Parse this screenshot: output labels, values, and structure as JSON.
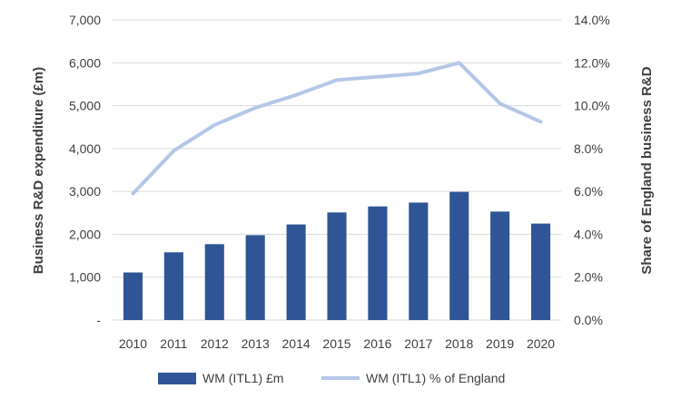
{
  "chart_data": {
    "type": "bar+line",
    "title": "",
    "categories": [
      "2010",
      "2011",
      "2012",
      "2013",
      "2014",
      "2015",
      "2016",
      "2017",
      "2018",
      "2019",
      "2020"
    ],
    "series": [
      {
        "name": "WM (ITL1) £m",
        "type": "bar",
        "axis": "left",
        "color": "#2f5597",
        "values": [
          1110,
          1580,
          1770,
          1980,
          2230,
          2510,
          2650,
          2740,
          2990,
          2530,
          2250
        ]
      },
      {
        "name": "WM (ITL1) % of England",
        "type": "line",
        "axis": "right",
        "color": "#b4c7e7",
        "values": [
          5.9,
          7.9,
          9.1,
          9.9,
          10.5,
          11.2,
          11.35,
          11.5,
          12.0,
          10.1,
          9.25
        ]
      }
    ],
    "ylabel": "Business R&D expenditure (£m)",
    "y2label": "Share of England business R&D",
    "ylim": [
      0,
      7000
    ],
    "y2lim": [
      0,
      14
    ],
    "yticks": [
      "-",
      "1,000",
      "2,000",
      "3,000",
      "4,000",
      "5,000",
      "6,000",
      "7,000"
    ],
    "y2ticks": [
      "0.0%",
      "2.0%",
      "4.0%",
      "6.0%",
      "8.0%",
      "10.0%",
      "12.0%",
      "14.0%"
    ],
    "grid": true,
    "legend_position": "bottom"
  }
}
